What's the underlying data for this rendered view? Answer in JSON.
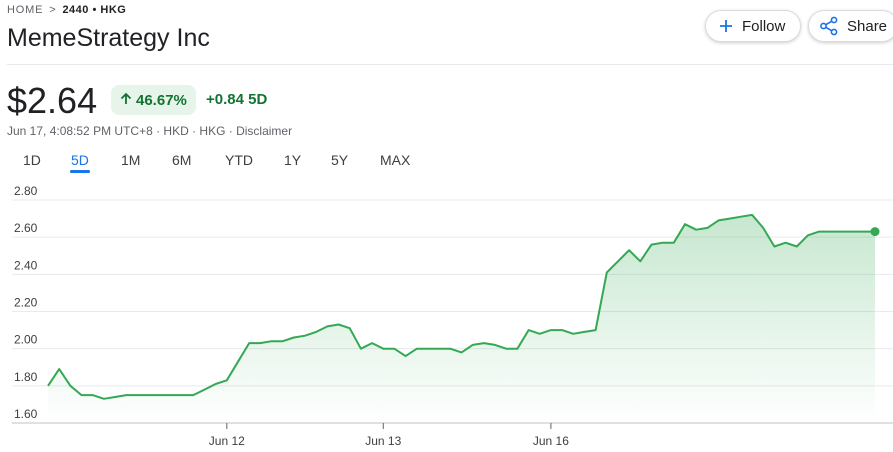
{
  "breadcrumb": {
    "home": "HOME",
    "separator": ">",
    "ticker": "2440 • HKG"
  },
  "header": {
    "title": "MemeStrategy Inc",
    "follow_label": "Follow",
    "share_label": "Share"
  },
  "quote": {
    "price": "$2.64",
    "percent_change": "46.67%",
    "abs_change": "+0.84 5D",
    "meta": "Jun 17, 4:08:52 PM UTC+8 · HKD · HKG · Disclaimer"
  },
  "ranges": [
    "1D",
    "5D",
    "1M",
    "6M",
    "YTD",
    "1Y",
    "5Y",
    "MAX"
  ],
  "active_range": "5D",
  "colors": {
    "line": "#34a853",
    "accent": "#1a73e8",
    "positive": "#137333"
  },
  "chart_data": {
    "type": "area",
    "title": "",
    "xlabel": "",
    "ylabel": "",
    "ylim": [
      1.6,
      2.8
    ],
    "yticks": [
      2.8,
      2.6,
      2.4,
      2.2,
      2.0,
      1.8,
      1.6
    ],
    "ytick_labels": [
      "2.80",
      "2.60",
      "2.40",
      "2.20",
      "2.00",
      "1.80",
      "1.60"
    ],
    "xtick_labels": [
      "Jun 12",
      "Jun 13",
      "Jun 16"
    ],
    "xtick_positions": [
      16,
      30,
      45
    ],
    "grid": true,
    "x": [
      0,
      1,
      2,
      3,
      4,
      5,
      6,
      7,
      8,
      9,
      10,
      11,
      12,
      13,
      14,
      15,
      16,
      17,
      18,
      19,
      20,
      21,
      22,
      23,
      24,
      25,
      26,
      27,
      28,
      29,
      30,
      31,
      32,
      33,
      34,
      35,
      36,
      37,
      38,
      39,
      40,
      41,
      42,
      43,
      44,
      45,
      46,
      47,
      48,
      49,
      50,
      51,
      52,
      53,
      54,
      55,
      56,
      57,
      58,
      59,
      60,
      61,
      62,
      63,
      64,
      65,
      66,
      67,
      68,
      69,
      70,
      71,
      72,
      73,
      74
    ],
    "series": [
      {
        "values": [
          1.8,
          1.89,
          1.8,
          1.75,
          1.75,
          1.73,
          1.74,
          1.75,
          1.75,
          1.75,
          1.75,
          1.75,
          1.75,
          1.75,
          1.78,
          1.81,
          1.83,
          1.93,
          2.03,
          2.03,
          2.04,
          2.04,
          2.06,
          2.07,
          2.09,
          2.12,
          2.13,
          2.11,
          2.0,
          2.03,
          2.0,
          2.0,
          1.96,
          2.0,
          2.0,
          2.0,
          2.0,
          1.98,
          2.02,
          2.03,
          2.02,
          2.0,
          2.0,
          2.1,
          2.08,
          2.1,
          2.1,
          2.08,
          2.09,
          2.1,
          2.41,
          2.47,
          2.53,
          2.47,
          2.56,
          2.57,
          2.57,
          2.67,
          2.64,
          2.65,
          2.69,
          2.7,
          2.71,
          2.72,
          2.65,
          2.55,
          2.57,
          2.55,
          2.61,
          2.63,
          2.63,
          2.63,
          2.63,
          2.63,
          2.63
        ]
      }
    ],
    "last_point_value": 2.63
  }
}
